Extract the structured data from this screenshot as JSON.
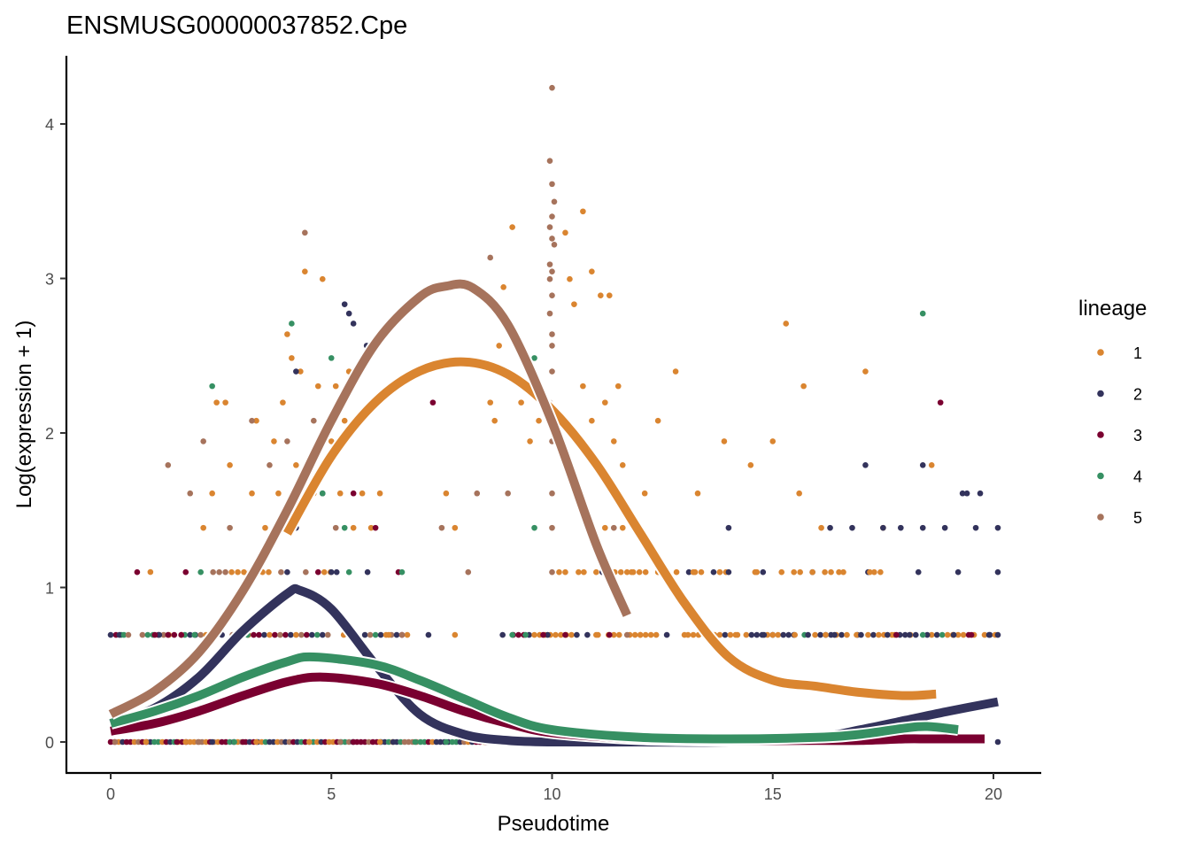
{
  "chart_data": {
    "type": "scatter",
    "title": "ENSMUSG00000037852.Cpe",
    "xlabel": "Pseudotime",
    "ylabel": "Log(expression + 1)",
    "xlim": [
      -1,
      21
    ],
    "ylim": [
      -0.22,
      4.42
    ],
    "xticks": [
      0,
      5,
      10,
      15,
      20
    ],
    "yticks": [
      0,
      1,
      2,
      3,
      4
    ],
    "grid": false,
    "legend": {
      "title": "lineage",
      "position": "right",
      "entries": [
        {
          "label": "1",
          "color": "#DA8530"
        },
        {
          "label": "2",
          "color": "#33335C"
        },
        {
          "label": "3",
          "color": "#7A0030"
        },
        {
          "label": "4",
          "color": "#369063"
        },
        {
          "label": "5",
          "color": "#A6735C"
        }
      ]
    },
    "expression_levels": [
      0,
      0.693,
      1.099,
      1.386,
      1.609,
      1.792,
      1.946,
      2.079,
      2.197,
      2.303,
      2.398,
      2.485,
      2.565,
      2.639,
      2.708,
      2.773,
      2.833,
      2.89,
      2.944,
      2.996,
      3.045,
      3.091,
      3.135,
      3.178,
      3.219,
      3.258,
      3.296,
      3.332,
      3.434,
      3.611,
      3.761,
      4.234
    ],
    "series": [
      {
        "name": "1",
        "color": "#DA8530",
        "points": [
          [
            0.9,
            1.1
          ],
          [
            1.6,
            0.693
          ],
          [
            2.1,
            1.386
          ],
          [
            2.3,
            1.609
          ],
          [
            2.4,
            2.197
          ],
          [
            2.6,
            2.197
          ],
          [
            2.7,
            1.792
          ],
          [
            3.0,
            0.693
          ],
          [
            3.2,
            1.609
          ],
          [
            3.3,
            2.079
          ],
          [
            3.5,
            1.386
          ],
          [
            3.7,
            1.946
          ],
          [
            3.8,
            1.609
          ],
          [
            3.9,
            2.197
          ],
          [
            4.0,
            2.639
          ],
          [
            4.1,
            2.485
          ],
          [
            4.2,
            1.792
          ],
          [
            4.3,
            2.398
          ],
          [
            4.4,
            3.045
          ],
          [
            4.6,
            1.609
          ],
          [
            4.7,
            2.303
          ],
          [
            4.8,
            2.996
          ],
          [
            5.0,
            1.946
          ],
          [
            5.1,
            2.303
          ],
          [
            5.2,
            1.609
          ],
          [
            5.3,
            2.079
          ],
          [
            5.4,
            2.398
          ],
          [
            5.5,
            1.386
          ],
          [
            5.7,
            1.609
          ],
          [
            5.9,
            1.386
          ],
          [
            6.1,
            1.609
          ],
          [
            6.3,
            0.693
          ],
          [
            7.8,
            0.693
          ],
          [
            7.6,
            1.609
          ],
          [
            7.8,
            1.386
          ],
          [
            8.6,
            2.197
          ],
          [
            8.7,
            2.079
          ],
          [
            8.8,
            2.565
          ],
          [
            8.9,
            2.944
          ],
          [
            9.1,
            3.332
          ],
          [
            9.3,
            2.197
          ],
          [
            9.5,
            1.946
          ],
          [
            9.7,
            2.079
          ],
          [
            10.3,
            3.296
          ],
          [
            10.4,
            2.996
          ],
          [
            10.5,
            2.833
          ],
          [
            10.7,
            3.434
          ],
          [
            10.9,
            3.045
          ],
          [
            11.1,
            2.89
          ],
          [
            11.3,
            2.89
          ],
          [
            10.7,
            2.303
          ],
          [
            10.9,
            2.079
          ],
          [
            11.2,
            2.197
          ],
          [
            11.5,
            2.303
          ],
          [
            11.4,
            1.946
          ],
          [
            11.6,
            1.792
          ],
          [
            11.2,
            1.386
          ],
          [
            11.6,
            1.386
          ],
          [
            12.1,
            1.609
          ],
          [
            12.4,
            2.079
          ],
          [
            12.8,
            2.398
          ],
          [
            13.3,
            1.609
          ],
          [
            13.9,
            1.946
          ],
          [
            14.5,
            1.792
          ],
          [
            15.0,
            1.946
          ],
          [
            15.3,
            2.708
          ],
          [
            15.6,
            1.609
          ],
          [
            15.7,
            2.303
          ],
          [
            16.1,
            1.386
          ],
          [
            16.5,
            1.099
          ],
          [
            17.1,
            2.398
          ],
          [
            17.5,
            1.386
          ],
          [
            18.6,
            1.792
          ],
          [
            10.6,
            1.099
          ],
          [
            11.8,
            1.099
          ],
          [
            12.6,
            1.099
          ],
          [
            13.2,
            1.099
          ],
          [
            13.8,
            1.099
          ],
          [
            14.6,
            1.099
          ],
          [
            15.2,
            1.099
          ],
          [
            15.9,
            1.099
          ],
          [
            16.6,
            1.099
          ],
          [
            17.2,
            1.099
          ],
          [
            11.0,
            0.693
          ],
          [
            12.0,
            0.693
          ],
          [
            13.0,
            0.693
          ],
          [
            14.2,
            0.693
          ],
          [
            15.0,
            0.693
          ],
          [
            15.5,
            0.693
          ],
          [
            16.2,
            0.693
          ],
          [
            16.9,
            0.693
          ],
          [
            17.7,
            0.693
          ],
          [
            0.8,
            0.0
          ],
          [
            1.7,
            0.0
          ],
          [
            3.3,
            0.0
          ],
          [
            4.5,
            0.0
          ],
          [
            6.1,
            0.0
          ]
        ]
      },
      {
        "name": "2",
        "color": "#33335C",
        "points": [
          [
            0.0,
            0.693
          ],
          [
            0.2,
            0.693
          ],
          [
            1.1,
            0.693
          ],
          [
            4.2,
            2.398
          ],
          [
            5.3,
            2.833
          ],
          [
            5.4,
            2.773
          ],
          [
            5.5,
            2.708
          ],
          [
            5.8,
            2.565
          ],
          [
            4.5,
            1.792
          ],
          [
            4.8,
            1.609
          ],
          [
            4.2,
            1.386
          ],
          [
            5.0,
            1.099
          ],
          [
            7.2,
            0.693
          ],
          [
            9.9,
            0.693
          ],
          [
            12.6,
            0.693
          ],
          [
            14.0,
            1.386
          ],
          [
            14.8,
            0.693
          ],
          [
            15.8,
            0.693
          ],
          [
            16.4,
            0.693
          ],
          [
            17.0,
            0.693
          ],
          [
            17.6,
            0.693
          ],
          [
            18.1,
            0.693
          ],
          [
            18.5,
            0.693
          ],
          [
            19.1,
            0.693
          ],
          [
            19.9,
            0.693
          ],
          [
            20.1,
            0.693
          ],
          [
            16.3,
            1.386
          ],
          [
            16.8,
            1.386
          ],
          [
            17.5,
            1.386
          ],
          [
            17.9,
            1.386
          ],
          [
            18.4,
            1.386
          ],
          [
            18.9,
            1.386
          ],
          [
            19.6,
            1.386
          ],
          [
            20.1,
            1.386
          ],
          [
            17.1,
            1.792
          ],
          [
            18.4,
            1.792
          ],
          [
            19.3,
            1.609
          ],
          [
            19.4,
            1.609
          ],
          [
            19.7,
            1.609
          ],
          [
            18.3,
            1.099
          ],
          [
            19.2,
            1.099
          ],
          [
            20.1,
            1.099
          ],
          [
            14.0,
            1.099
          ],
          [
            2.3,
            0.0
          ],
          [
            6.4,
            0.0
          ],
          [
            10.5,
            0.0
          ],
          [
            20.1,
            0.0
          ]
        ]
      },
      {
        "name": "3",
        "color": "#7A0030",
        "points": [
          [
            0.6,
            1.099
          ],
          [
            1.7,
            1.099
          ],
          [
            1.0,
            0.693
          ],
          [
            1.3,
            0.693
          ],
          [
            1.6,
            0.693
          ],
          [
            5.5,
            1.609
          ],
          [
            6.0,
            1.386
          ],
          [
            7.3,
            2.197
          ],
          [
            9.8,
            0.693
          ],
          [
            10.3,
            0.693
          ],
          [
            11.3,
            0.693
          ],
          [
            18.8,
            2.197
          ],
          [
            17.8,
            0.693
          ],
          [
            19.5,
            0.693
          ],
          [
            1.5,
            0.0
          ],
          [
            3.0,
            0.0
          ],
          [
            5.5,
            0.0
          ],
          [
            8.5,
            0.0
          ]
        ]
      },
      {
        "name": "4",
        "color": "#369063",
        "points": [
          [
            0.3,
            0.693
          ],
          [
            1.9,
            0.693
          ],
          [
            3.1,
            0.693
          ],
          [
            2.3,
            2.303
          ],
          [
            4.1,
            2.708
          ],
          [
            5.0,
            2.485
          ],
          [
            4.8,
            1.609
          ],
          [
            5.3,
            1.386
          ],
          [
            6.6,
            1.099
          ],
          [
            9.6,
            2.485
          ],
          [
            9.6,
            1.386
          ],
          [
            9.1,
            0.693
          ],
          [
            9.4,
            0.693
          ],
          [
            18.4,
            2.773
          ],
          [
            18.4,
            0.693
          ],
          [
            2.8,
            0.0
          ],
          [
            6.9,
            0.0
          ],
          [
            7.6,
            0.0
          ]
        ]
      },
      {
        "name": "5",
        "color": "#A6735C",
        "points": [
          [
            0.4,
            0.693
          ],
          [
            1.3,
            1.792
          ],
          [
            1.8,
            1.609
          ],
          [
            2.1,
            1.946
          ],
          [
            2.7,
            1.386
          ],
          [
            3.2,
            2.079
          ],
          [
            3.6,
            1.792
          ],
          [
            3.8,
            1.386
          ],
          [
            4.0,
            1.946
          ],
          [
            4.4,
            3.296
          ],
          [
            4.5,
            1.609
          ],
          [
            4.6,
            2.079
          ],
          [
            5.1,
            1.386
          ],
          [
            6.6,
            0.693
          ],
          [
            7.5,
            1.386
          ],
          [
            8.1,
            1.099
          ],
          [
            8.3,
            1.609
          ],
          [
            8.6,
            3.135
          ],
          [
            9.0,
            1.609
          ],
          [
            10.0,
            4.234
          ],
          [
            9.95,
            3.761
          ],
          [
            10.0,
            3.611
          ],
          [
            10.05,
            3.497
          ],
          [
            10.0,
            3.401
          ],
          [
            9.95,
            3.332
          ],
          [
            10.0,
            3.258
          ],
          [
            10.05,
            3.219
          ],
          [
            9.95,
            3.091
          ],
          [
            10.0,
            3.045
          ],
          [
            9.95,
            2.996
          ],
          [
            10.0,
            2.89
          ],
          [
            9.95,
            2.773
          ],
          [
            10.0,
            2.639
          ],
          [
            10.0,
            2.565
          ],
          [
            10.0,
            2.398
          ],
          [
            9.95,
            2.197
          ],
          [
            10.0,
            1.946
          ],
          [
            10.0,
            1.609
          ],
          [
            10.0,
            1.386
          ],
          [
            10.0,
            1.099
          ],
          [
            11.7,
            0.693
          ],
          [
            11.4,
            1.386
          ],
          [
            0.1,
            0.0
          ],
          [
            2.0,
            0.0
          ],
          [
            5.2,
            0.0
          ]
        ]
      }
    ],
    "smooth_curves": [
      {
        "name": "1",
        "color": "#DA8530",
        "x": [
          4.0,
          5.0,
          6.0,
          7.0,
          8.0,
          9.0,
          10.0,
          11.0,
          12.0,
          13.0,
          14.0,
          15.0,
          16.0,
          17.0,
          18.0,
          18.7
        ],
        "y": [
          1.35,
          1.85,
          2.2,
          2.4,
          2.46,
          2.38,
          2.15,
          1.8,
          1.35,
          0.9,
          0.55,
          0.4,
          0.36,
          0.32,
          0.3,
          0.31
        ]
      },
      {
        "name": "2",
        "color": "#33335C",
        "x": [
          0.0,
          1.0,
          2.0,
          3.0,
          4.0,
          4.3,
          5.0,
          6.0,
          7.0,
          8.0,
          9.0,
          10.0,
          12.0,
          14.0,
          16.0,
          17.0,
          18.0,
          19.0,
          20.1
        ],
        "y": [
          0.12,
          0.22,
          0.42,
          0.72,
          0.96,
          0.98,
          0.86,
          0.5,
          0.18,
          0.05,
          0.01,
          0.0,
          0.0,
          0.0,
          0.03,
          0.08,
          0.14,
          0.2,
          0.26
        ]
      },
      {
        "name": "3",
        "color": "#7A0030",
        "x": [
          0.0,
          1.0,
          2.0,
          3.0,
          4.0,
          4.8,
          6.0,
          7.0,
          8.0,
          9.0,
          10.0,
          12.0,
          14.0,
          16.0,
          17.0,
          18.0,
          18.5,
          19.0,
          19.8
        ],
        "y": [
          0.07,
          0.12,
          0.2,
          0.3,
          0.39,
          0.42,
          0.38,
          0.3,
          0.2,
          0.12,
          0.06,
          0.02,
          0.01,
          0.01,
          0.01,
          0.02,
          0.02,
          0.02,
          0.02
        ]
      },
      {
        "name": "4",
        "color": "#369063",
        "x": [
          0.0,
          1.0,
          2.0,
          3.0,
          4.0,
          4.6,
          6.0,
          7.0,
          8.0,
          9.0,
          10.0,
          12.0,
          14.0,
          16.0,
          17.0,
          18.0,
          18.5,
          19.2
        ],
        "y": [
          0.12,
          0.2,
          0.3,
          0.42,
          0.52,
          0.55,
          0.5,
          0.4,
          0.28,
          0.16,
          0.08,
          0.03,
          0.02,
          0.03,
          0.05,
          0.09,
          0.1,
          0.08
        ]
      },
      {
        "name": "5",
        "color": "#A6735C",
        "x": [
          0.0,
          1.0,
          2.0,
          3.0,
          4.0,
          5.0,
          6.0,
          7.0,
          7.6,
          8.2,
          9.0,
          10.0,
          11.0,
          11.7
        ],
        "y": [
          0.18,
          0.33,
          0.58,
          0.98,
          1.5,
          2.08,
          2.58,
          2.88,
          2.95,
          2.94,
          2.7,
          2.07,
          1.28,
          0.82
        ]
      }
    ]
  }
}
